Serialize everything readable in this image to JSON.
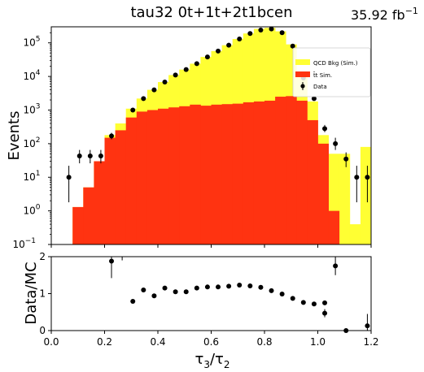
{
  "chart_data": [
    {
      "type": "bar",
      "title": "tau32  0t+1t+2t1bcen",
      "lumi_label": "35.92 fb",
      "lumi_exponent": "−1",
      "ylabel": "Events",
      "yscale": "log",
      "ylim": [
        0.1,
        300000
      ],
      "xlim": [
        0,
        1.2
      ],
      "yticks": [
        {
          "value": 0.1,
          "base": "10",
          "exp": "−1"
        },
        {
          "value": 1,
          "base": "10",
          "exp": "0"
        },
        {
          "value": 10,
          "base": "10",
          "exp": "1"
        },
        {
          "value": 100,
          "base": "10",
          "exp": "2"
        },
        {
          "value": 1000,
          "base": "10",
          "exp": "3"
        },
        {
          "value": 10000,
          "base": "10",
          "exp": "4"
        },
        {
          "value": 100000,
          "base": "10",
          "exp": "5"
        }
      ],
      "bin_edges": [
        0,
        0.04,
        0.08,
        0.12,
        0.16,
        0.2,
        0.24,
        0.28,
        0.32,
        0.36,
        0.4,
        0.44,
        0.48,
        0.52,
        0.56,
        0.6,
        0.64,
        0.68,
        0.72,
        0.76,
        0.8,
        0.84,
        0.88,
        0.92,
        0.96,
        1.0,
        1.04,
        1.08,
        1.12,
        1.16,
        1.2
      ],
      "series": [
        {
          "name": "QCD Bkg (Sim.)",
          "color": "#ffff33",
          "stack_totals": [
            0,
            0,
            1.3,
            5,
            30,
            180,
            400,
            1100,
            2200,
            4000,
            6800,
            11000,
            16000,
            24000,
            38000,
            57000,
            85000,
            130000,
            190000,
            260000,
            280000,
            220000,
            90000,
            11000,
            1800,
            180,
            50,
            50,
            0.4,
            80
          ]
        },
        {
          "name": "t̄t Sim.",
          "color": "#ff3311",
          "values": [
            0,
            0,
            1.3,
            5,
            30,
            150,
            250,
            600,
            900,
            1000,
            1100,
            1200,
            1300,
            1450,
            1350,
            1450,
            1500,
            1550,
            1700,
            1800,
            1900,
            2500,
            2600,
            1900,
            500,
            100,
            1,
            0,
            0,
            0
          ]
        },
        {
          "name": "Data",
          "color": "#000000",
          "points": [
            {
              "x": 0.066,
              "y": 10,
              "lo": 1.8,
              "hi": 22
            },
            {
              "x": 0.106,
              "y": 43,
              "lo": 26,
              "hi": 65
            },
            {
              "x": 0.146,
              "y": 43,
              "lo": 26,
              "hi": 65
            },
            {
              "x": 0.186,
              "y": 43,
              "lo": 26,
              "hi": 65
            },
            {
              "x": 0.226,
              "y": 170,
              "lo": 135,
              "hi": 210
            },
            {
              "x": 0.306,
              "y": 1000
            },
            {
              "x": 0.346,
              "y": 2200
            },
            {
              "x": 0.386,
              "y": 4000
            },
            {
              "x": 0.426,
              "y": 6800
            },
            {
              "x": 0.466,
              "y": 11000
            },
            {
              "x": 0.506,
              "y": 16000
            },
            {
              "x": 0.546,
              "y": 24000
            },
            {
              "x": 0.586,
              "y": 38000
            },
            {
              "x": 0.626,
              "y": 57000
            },
            {
              "x": 0.666,
              "y": 85000
            },
            {
              "x": 0.706,
              "y": 130000
            },
            {
              "x": 0.746,
              "y": 190000
            },
            {
              "x": 0.786,
              "y": 240000
            },
            {
              "x": 0.826,
              "y": 260000
            },
            {
              "x": 0.866,
              "y": 200000
            },
            {
              "x": 0.906,
              "y": 80000
            },
            {
              "x": 0.946,
              "y": 9000
            },
            {
              "x": 0.986,
              "y": 2200
            },
            {
              "x": 1.026,
              "y": 280,
              "lo": 220,
              "hi": 360
            },
            {
              "x": 1.066,
              "y": 100,
              "lo": 65,
              "hi": 150
            },
            {
              "x": 1.106,
              "y": 35,
              "lo": 20,
              "hi": 55
            },
            {
              "x": 1.146,
              "y": 10,
              "lo": 1.8,
              "hi": 22
            },
            {
              "x": 1.186,
              "y": 10,
              "lo": 1.8,
              "hi": 22
            }
          ]
        }
      ],
      "legend": {
        "placement": "top-right",
        "entries": [
          {
            "label": "QCD Bkg (Sim.)",
            "symbol": "patch",
            "color": "#ffff33"
          },
          {
            "label": "t̄t Sim.",
            "symbol": "patch",
            "color": "#ff3311"
          },
          {
            "label": "Data",
            "symbol": "errorbar",
            "color": "#000000"
          }
        ]
      }
    },
    {
      "type": "scatter",
      "xlabel_main": "τ",
      "xlabel_sub1": "3",
      "xlabel_mid": "/τ",
      "xlabel_sub2": "2",
      "ylabel": "Data/MC",
      "xlim": [
        0,
        1.2
      ],
      "ylim": [
        0,
        2
      ],
      "xticks": [
        "0.0",
        "0.2",
        "0.4",
        "0.6",
        "0.8",
        "1.0",
        "1.2"
      ],
      "yticks": [
        "0",
        "1",
        "2"
      ],
      "points": [
        {
          "x": 0.226,
          "y": 1.88,
          "lo": 1.42,
          "hi": 2.0
        },
        {
          "x": 0.266,
          "y": 2.0,
          "lo": 1.9,
          "hi": 2.0
        },
        {
          "x": 0.306,
          "y": 0.79
        },
        {
          "x": 0.346,
          "y": 1.1
        },
        {
          "x": 0.386,
          "y": 0.94
        },
        {
          "x": 0.426,
          "y": 1.15
        },
        {
          "x": 0.466,
          "y": 1.05
        },
        {
          "x": 0.506,
          "y": 1.05
        },
        {
          "x": 0.546,
          "y": 1.15
        },
        {
          "x": 0.586,
          "y": 1.18
        },
        {
          "x": 0.626,
          "y": 1.18
        },
        {
          "x": 0.666,
          "y": 1.2
        },
        {
          "x": 0.706,
          "y": 1.23
        },
        {
          "x": 0.746,
          "y": 1.21
        },
        {
          "x": 0.786,
          "y": 1.17
        },
        {
          "x": 0.826,
          "y": 1.08
        },
        {
          "x": 0.866,
          "y": 0.99
        },
        {
          "x": 0.906,
          "y": 0.87
        },
        {
          "x": 0.946,
          "y": 0.76
        },
        {
          "x": 0.986,
          "y": 0.72
        },
        {
          "x": 1.026,
          "y": 0.75
        },
        {
          "x": 1.026,
          "y": 0.47,
          "lo": 0.36,
          "hi": 0.58
        },
        {
          "x": 1.066,
          "y": 1.75,
          "lo": 1.5,
          "hi": 2.0
        },
        {
          "x": 1.106,
          "y": 0.0
        },
        {
          "x": 1.186,
          "y": 0.13,
          "lo": 0.0,
          "hi": 0.45
        }
      ]
    }
  ]
}
